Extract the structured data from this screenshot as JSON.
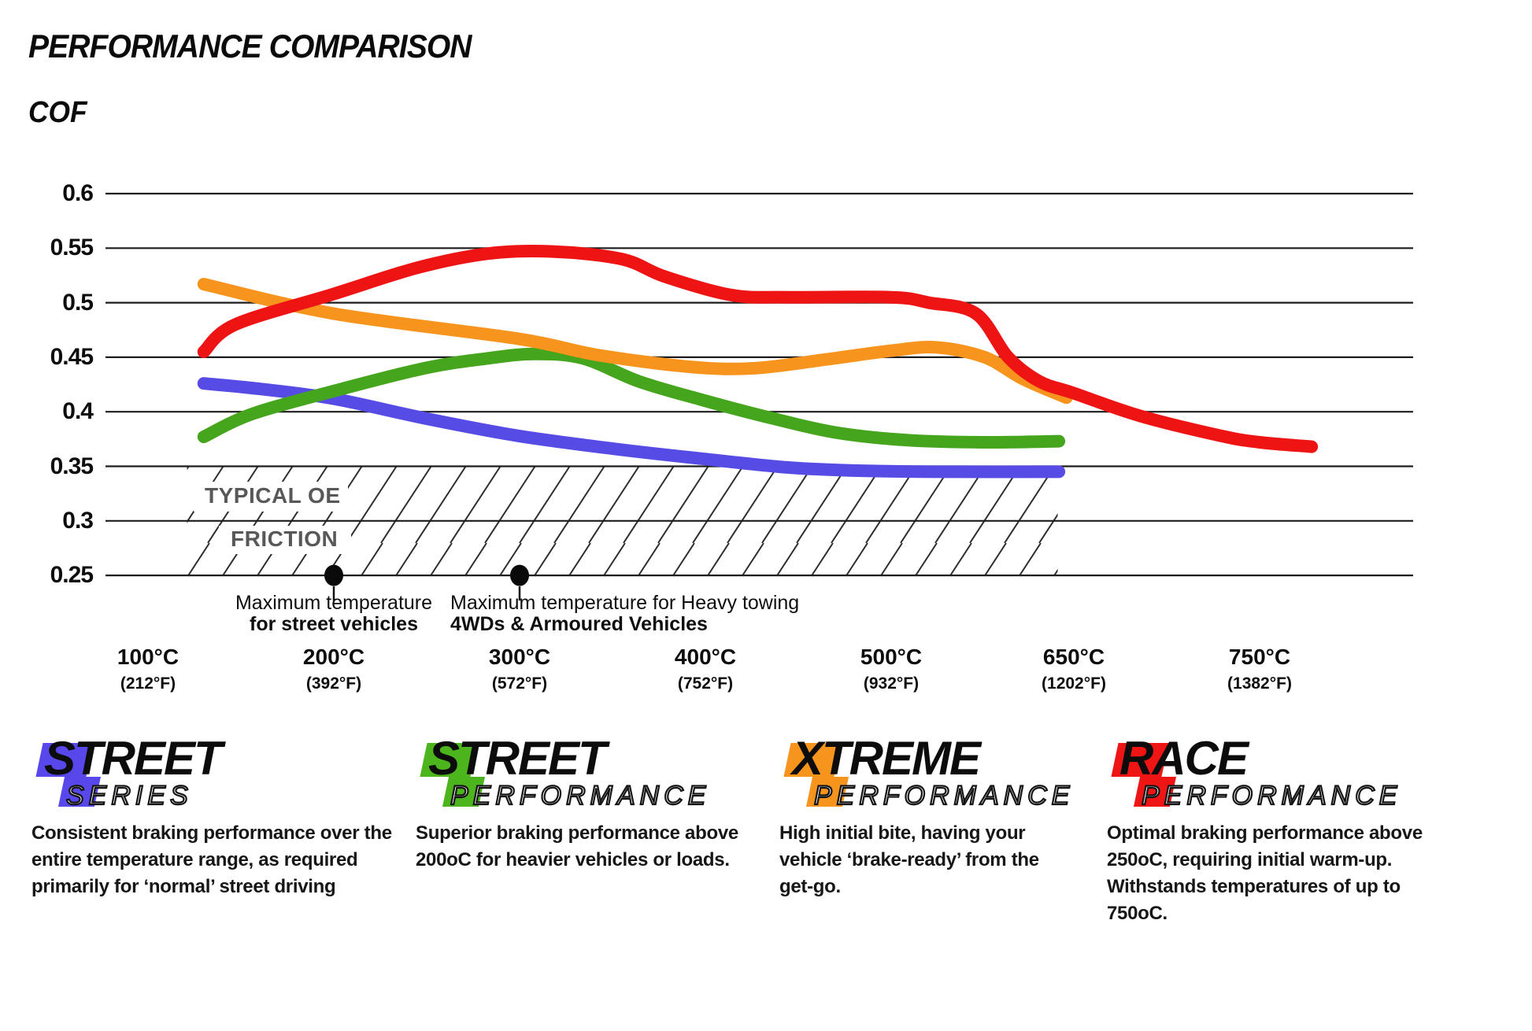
{
  "title": "PERFORMANCE COMPARISON",
  "y_axis_label": "COF",
  "chart_data": {
    "type": "line",
    "title": "PERFORMANCE COMPARISON",
    "ylabel": "COF",
    "grid": "horizontal",
    "legend_position": "bottom",
    "ylim": [
      0.25,
      0.625
    ],
    "y_ticks": [
      0.6,
      0.55,
      0.5,
      0.45,
      0.4,
      0.35,
      0.3,
      0.25
    ],
    "x_ticks": [
      {
        "temp": 100,
        "label": "100°C",
        "fahrenheit": "(212°F)"
      },
      {
        "temp": 200,
        "label": "200°C",
        "fahrenheit": "(392°F)"
      },
      {
        "temp": 300,
        "label": "300°C",
        "fahrenheit": "(572°F)"
      },
      {
        "temp": 400,
        "label": "400°C",
        "fahrenheit": "(752°F)"
      },
      {
        "temp": 500,
        "label": "500°C",
        "fahrenheit": "(932°F)"
      },
      {
        "temp": 650,
        "label": "650°C",
        "fahrenheit": "(1202°F)"
      },
      {
        "temp": 750,
        "label": "750°C",
        "fahrenheit": "(1382°F)"
      }
    ],
    "series": [
      {
        "name": "Street Series",
        "color": "#574be6",
        "points": [
          [
            130,
            0.426
          ],
          [
            160,
            0.421
          ],
          [
            200,
            0.412
          ],
          [
            249,
            0.394
          ],
          [
            299,
            0.378
          ],
          [
            351,
            0.366
          ],
          [
            398,
            0.357
          ],
          [
            444,
            0.349
          ],
          [
            482,
            0.346
          ],
          [
            546,
            0.345
          ],
          [
            638,
            0.345
          ]
        ]
      },
      {
        "name": "Street Performance",
        "color": "#45a51c",
        "points": [
          [
            130,
            0.377
          ],
          [
            156,
            0.398
          ],
          [
            200,
            0.419
          ],
          [
            249,
            0.44
          ],
          [
            283,
            0.449
          ],
          [
            308,
            0.453
          ],
          [
            334,
            0.449
          ],
          [
            364,
            0.428
          ],
          [
            398,
            0.411
          ],
          [
            436,
            0.394
          ],
          [
            470,
            0.381
          ],
          [
            515,
            0.374
          ],
          [
            578,
            0.372
          ],
          [
            638,
            0.373
          ]
        ]
      },
      {
        "name": "Xtreme Performance",
        "color": "#f7941d",
        "points": [
          [
            130,
            0.517
          ],
          [
            200,
            0.49
          ],
          [
            299,
            0.467
          ],
          [
            342,
            0.452
          ],
          [
            393,
            0.441
          ],
          [
            427,
            0.44
          ],
          [
            465,
            0.448
          ],
          [
            500,
            0.456
          ],
          [
            539,
            0.459
          ],
          [
            578,
            0.45
          ],
          [
            609,
            0.43
          ],
          [
            644,
            0.413
          ]
        ]
      },
      {
        "name": "Race Performance",
        "color": "#ee1414",
        "points": [
          [
            130,
            0.455
          ],
          [
            147,
            0.48
          ],
          [
            200,
            0.508
          ],
          [
            245,
            0.532
          ],
          [
            283,
            0.545
          ],
          [
            317,
            0.547
          ],
          [
            355,
            0.54
          ],
          [
            378,
            0.524
          ],
          [
            414,
            0.507
          ],
          [
            444,
            0.505
          ],
          [
            500,
            0.505
          ],
          [
            533,
            0.5
          ],
          [
            571,
            0.49
          ],
          [
            597,
            0.45
          ],
          [
            622,
            0.428
          ],
          [
            650,
            0.417
          ],
          [
            686,
            0.396
          ],
          [
            729,
            0.378
          ],
          [
            750,
            0.372
          ],
          [
            778,
            0.368
          ]
        ]
      }
    ],
    "oe_band": {
      "label_line1": "TYPICAL OE",
      "label_line2": "FRICTION",
      "cof_min": 0.25,
      "cof_max": 0.35,
      "temp_start_c": 121,
      "temp_end_c": 637
    },
    "annotations": [
      {
        "temp_c": 200,
        "align": "center",
        "line1": "Maximum temperature",
        "line2": "for street vehicles"
      },
      {
        "temp_c": 300,
        "align": "left",
        "line1": "Maximum temperature for Heavy towing",
        "line2": "4WDs & Armoured Vehicles"
      }
    ]
  },
  "legend": [
    {
      "word": "STREET",
      "subtitle": "SERIES",
      "badge_color": "#5848ec",
      "description": "Consistent braking performance over the entire temperature range, as required primarily for ‘normal’ street driving"
    },
    {
      "word": "STREET",
      "subtitle": "PERFORMANCE",
      "badge_color": "#4cb41c",
      "description": "Superior braking performance above 200oC for heavier vehicles or loads."
    },
    {
      "word": "XTREME",
      "subtitle": "PERFORMANCE",
      "badge_color": "#f7941d",
      "description": "High initial bite, having your vehicle ‘brake-ready’ from the get-go."
    },
    {
      "word": "RACE",
      "subtitle": "PERFORMANCE",
      "badge_color": "#f01515",
      "description": "Optimal braking performance above 250oC, requiring initial warm-up. Withstands temperatures of up to 750oC."
    }
  ]
}
